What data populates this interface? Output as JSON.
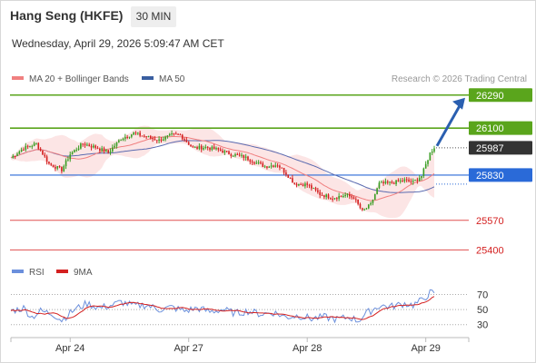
{
  "header": {
    "title": "Hang Seng (HKFE)",
    "timeframe": "30 MIN",
    "datetime": "Wednesday, April 29, 2026 5:09:47 AM CET"
  },
  "legend": {
    "items": [
      {
        "label": "MA 20 + Bollinger Bands",
        "color": "#f08080"
      },
      {
        "label": "MA 50",
        "color": "#3a5fa0"
      }
    ],
    "credit": "Research © 2026 Trading Central"
  },
  "chart_data": [
    {
      "type": "candlestick",
      "title": "Hang Seng (HKFE)",
      "x_tick_labels": [
        "Apr 24",
        "Apr 27",
        "Apr 28",
        "Apr 29"
      ],
      "ylim": [
        25360,
        26320
      ],
      "current_price": 25987,
      "levels": [
        {
          "value": 26290,
          "label": "26290",
          "kind": "resistance"
        },
        {
          "value": 26100,
          "label": "26100",
          "kind": "resistance"
        },
        {
          "value": 25830,
          "label": "25830",
          "kind": "pivot"
        },
        {
          "value": 25570,
          "label": "25570",
          "kind": "support"
        },
        {
          "value": 25400,
          "label": "25400",
          "kind": "support"
        }
      ],
      "close_anchors": [
        [
          0,
          25930
        ],
        [
          6,
          25985
        ],
        [
          12,
          26010
        ],
        [
          18,
          25895
        ],
        [
          24,
          25860
        ],
        [
          28,
          25950
        ],
        [
          34,
          26010
        ],
        [
          40,
          25990
        ],
        [
          46,
          25960
        ],
        [
          52,
          26040
        ],
        [
          58,
          26070
        ],
        [
          64,
          26050
        ],
        [
          70,
          26030
        ],
        [
          76,
          26060
        ],
        [
          80,
          26060
        ],
        [
          86,
          25985
        ],
        [
          92,
          25990
        ],
        [
          98,
          25975
        ],
        [
          104,
          25950
        ],
        [
          110,
          25935
        ],
        [
          116,
          25900
        ],
        [
          120,
          25880
        ],
        [
          126,
          25890
        ],
        [
          130,
          25840
        ],
        [
          134,
          25780
        ],
        [
          140,
          25775
        ],
        [
          146,
          25720
        ],
        [
          152,
          25700
        ],
        [
          158,
          25715
        ],
        [
          162,
          25700
        ],
        [
          166,
          25620
        ],
        [
          170,
          25660
        ],
        [
          174,
          25780
        ],
        [
          180,
          25785
        ],
        [
          186,
          25800
        ],
        [
          190,
          25790
        ],
        [
          194,
          25825
        ],
        [
          198,
          25955
        ],
        [
          200,
          25990
        ]
      ],
      "series": [
        {
          "name": "MA 20 + Bollinger Bands",
          "color": "#f08080"
        },
        {
          "name": "MA 50",
          "color": "#3a5fa0"
        }
      ]
    },
    {
      "type": "line",
      "series": [
        {
          "name": "RSI",
          "color": "#6b8fdc"
        },
        {
          "name": "9MA",
          "color": "#d42020"
        }
      ],
      "ylim": [
        20,
        85
      ],
      "y_tick_labels": [
        70,
        50,
        30
      ],
      "last_rsi": 72,
      "rsi_anchors": [
        [
          0,
          48
        ],
        [
          6,
          52
        ],
        [
          10,
          40
        ],
        [
          14,
          48
        ],
        [
          20,
          44
        ],
        [
          24,
          36
        ],
        [
          30,
          50
        ],
        [
          36,
          58
        ],
        [
          42,
          52
        ],
        [
          48,
          56
        ],
        [
          52,
          60
        ],
        [
          58,
          55
        ],
        [
          64,
          56
        ],
        [
          70,
          50
        ],
        [
          76,
          53
        ],
        [
          82,
          48
        ],
        [
          88,
          52
        ],
        [
          94,
          47
        ],
        [
          100,
          50
        ],
        [
          106,
          45
        ],
        [
          112,
          48
        ],
        [
          118,
          44
        ],
        [
          124,
          46
        ],
        [
          130,
          40
        ],
        [
          136,
          42
        ],
        [
          142,
          38
        ],
        [
          148,
          40
        ],
        [
          154,
          37
        ],
        [
          160,
          40
        ],
        [
          164,
          35
        ],
        [
          168,
          45
        ],
        [
          174,
          55
        ],
        [
          180,
          54
        ],
        [
          186,
          58
        ],
        [
          190,
          56
        ],
        [
          194,
          62
        ],
        [
          198,
          72
        ],
        [
          200,
          72
        ]
      ]
    }
  ]
}
